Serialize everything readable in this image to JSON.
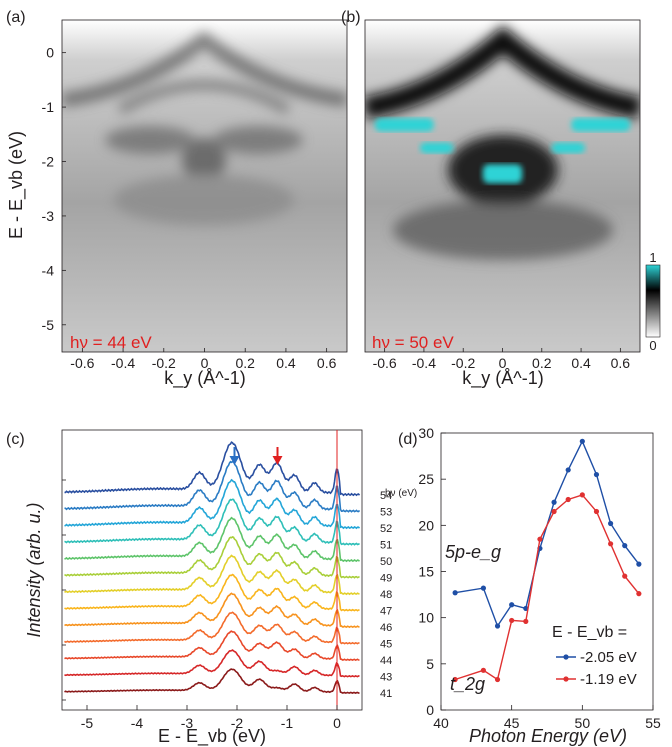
{
  "colors": {
    "label_red": "#e02020",
    "cyan": "#2ed3d6",
    "blue_series": "#1f4fa6",
    "red_series": "#e03131"
  },
  "chart_data": [
    {
      "panel": "(a)",
      "type": "heatmap",
      "annotation": "hν = 44 eV",
      "xlabel": "k_y (Å^-1)",
      "ylabel": "E - E_vb (eV)",
      "xticks": [
        -0.6,
        -0.4,
        -0.2,
        0,
        0.2,
        0.4,
        0.6
      ],
      "yticks": [
        0,
        -1,
        -2,
        -3,
        -4,
        -5
      ],
      "xlim": [
        -0.7,
        0.7
      ],
      "ylim": [
        -5.5,
        0.6
      ],
      "band_features": [
        {
          "k": 0.0,
          "E": -0.05
        },
        {
          "k": 0.0,
          "E": -2.2
        },
        {
          "k": -0.3,
          "E": -1.3
        },
        {
          "k": 0.3,
          "E": -1.3
        }
      ]
    },
    {
      "panel": "(b)",
      "type": "heatmap",
      "annotation": "hν = 50 eV",
      "xlabel": "k_y (Å^-1)",
      "xticks": [
        -0.6,
        -0.4,
        -0.2,
        0,
        0.2,
        0.4,
        0.6
      ],
      "xlim": [
        -0.7,
        0.7
      ],
      "ylim": [
        -5.5,
        0.6
      ],
      "colorbar_ticks": [
        "1",
        "0"
      ],
      "saturated_regions": [
        {
          "k": [
            -0.65,
            -0.35
          ],
          "E": [
            -1.2,
            -1.45
          ]
        },
        {
          "k": [
            -0.42,
            -0.25
          ],
          "E": [
            -1.65,
            -1.85
          ]
        },
        {
          "k": [
            -0.1,
            0.1
          ],
          "E": [
            -2.05,
            -2.4
          ]
        },
        {
          "k": [
            0.25,
            0.42
          ],
          "E": [
            -1.65,
            -1.85
          ]
        },
        {
          "k": [
            0.35,
            0.65
          ],
          "E": [
            -1.2,
            -1.45
          ]
        }
      ]
    },
    {
      "panel": "(c)",
      "type": "line",
      "xlabel": "E - E_vb (eV)",
      "ylabel": "Intensity (arb. u.)",
      "xticks": [
        -5,
        -4,
        -3,
        -2,
        -1,
        0
      ],
      "xlim": [
        -5.5,
        0.5
      ],
      "legend_title": "hν (eV)",
      "arrows": [
        {
          "x": -2.05,
          "color": "blue"
        },
        {
          "x": -1.19,
          "color": "red"
        }
      ],
      "vline": 0,
      "series": [
        {
          "name": "41",
          "color": "#8b1a1a"
        },
        {
          "name": "43",
          "color": "#d62728"
        },
        {
          "name": "44",
          "color": "#e8482a"
        },
        {
          "name": "45",
          "color": "#f36b2c"
        },
        {
          "name": "46",
          "color": "#f7931e"
        },
        {
          "name": "47",
          "color": "#f9b51d"
        },
        {
          "name": "48",
          "color": "#e3cf2a"
        },
        {
          "name": "49",
          "color": "#a9cf3a"
        },
        {
          "name": "50",
          "color": "#5ec46a"
        },
        {
          "name": "51",
          "color": "#2fbfb8"
        },
        {
          "name": "52",
          "color": "#24a6d8"
        },
        {
          "name": "53",
          "color": "#2b7cc4"
        },
        {
          "name": "54",
          "color": "#2a4fa0"
        }
      ]
    },
    {
      "panel": "(d)",
      "type": "line",
      "xlabel": "Photon Energy (eV)",
      "xticks": [
        40,
        45,
        50,
        55
      ],
      "yticks": [
        0,
        5,
        10,
        15,
        20,
        25,
        30
      ],
      "xlim": [
        40,
        55
      ],
      "ylim": [
        0,
        30
      ],
      "legend_title": "E - E_vb =",
      "annotations": [
        "5p-e_g",
        "t_2g"
      ],
      "x": [
        41,
        43,
        44,
        45,
        46,
        47,
        48,
        49,
        50,
        51,
        52,
        53,
        54
      ],
      "series": [
        {
          "name": "-2.05 eV",
          "color": "#1f4fa6",
          "values": [
            12.7,
            13.2,
            9.1,
            11.4,
            11.0,
            17.5,
            22.5,
            26.0,
            29.1,
            25.5,
            20.2,
            17.8,
            15.8
          ]
        },
        {
          "name": "-1.19 eV",
          "color": "#e03131",
          "values": [
            3.3,
            4.3,
            3.3,
            9.7,
            9.6,
            18.5,
            21.5,
            22.8,
            23.3,
            21.5,
            18.0,
            14.5,
            12.6
          ]
        }
      ]
    }
  ]
}
